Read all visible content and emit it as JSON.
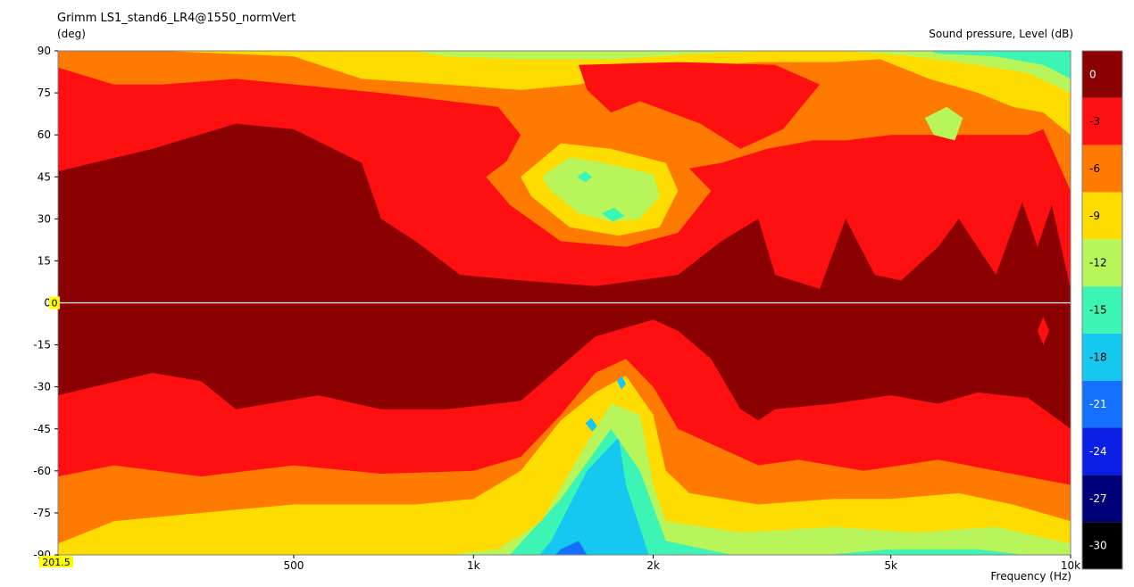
{
  "chart_data": {
    "type": "heatmap",
    "title": "Grimm LS1_stand6_LR4@1550_normVert",
    "ylabel": "(deg)",
    "xlabel": "Frequency  (Hz)",
    "zlabel": "Sound pressure, Level  (dB)",
    "x_scale": "log",
    "xlim": [
      201.5,
      10000
    ],
    "ylim": [
      -90,
      90
    ],
    "x_ticks": [
      {
        "value": 201.5,
        "label": "201.5"
      },
      {
        "value": 500,
        "label": "500"
      },
      {
        "value": 1000,
        "label": "1k"
      },
      {
        "value": 2000,
        "label": "2k"
      },
      {
        "value": 5000,
        "label": "5k"
      },
      {
        "value": 10000,
        "label": "10k"
      }
    ],
    "y_ticks": [
      90,
      75,
      60,
      45,
      30,
      15,
      0,
      -15,
      -30,
      -45,
      -60,
      -75,
      -90
    ],
    "cursor": {
      "y_value": "0",
      "x_value": "201.5"
    },
    "colorbar": [
      {
        "label": "0",
        "color": "#8b0000"
      },
      {
        "label": "-3",
        "color": "#ff1010"
      },
      {
        "label": "-6",
        "color": "#ff7a00"
      },
      {
        "label": "-9",
        "color": "#ffdc00"
      },
      {
        "label": "-12",
        "color": "#b8f55a"
      },
      {
        "label": "-15",
        "color": "#3cf5b4"
      },
      {
        "label": "-18",
        "color": "#14c8f0"
      },
      {
        "label": "-21",
        "color": "#1470ff"
      },
      {
        "label": "-24",
        "color": "#0a1ee6"
      },
      {
        "label": "-27",
        "color": "#00007a"
      },
      {
        "label": "-30",
        "color": "#000000"
      }
    ],
    "contour_fields": [
      {
        "name": "upper",
        "angle_range": [
          0,
          90
        ],
        "levels_db": [
          0,
          -3,
          -6,
          -9,
          -12,
          -15
        ],
        "boundaries_deg": {
          "0": [
            [
              201.5,
              47
            ],
            [
              290,
              55
            ],
            [
              400,
              64
            ],
            [
              500,
              62
            ],
            [
              650,
              50
            ],
            [
              700,
              30
            ],
            [
              800,
              22
            ],
            [
              950,
              10
            ],
            [
              1200,
              8
            ],
            [
              1600,
              6
            ],
            [
              2200,
              10
            ],
            [
              2600,
              22
            ],
            [
              3000,
              30
            ],
            [
              3200,
              10
            ],
            [
              3800,
              5
            ],
            [
              4200,
              30
            ],
            [
              4700,
              10
            ],
            [
              5200,
              8
            ],
            [
              6000,
              20
            ],
            [
              6500,
              30
            ],
            [
              7500,
              10
            ],
            [
              8300,
              36
            ],
            [
              8800,
              20
            ],
            [
              9300,
              35
            ],
            [
              10000,
              5
            ]
          ],
          "-3": [
            [
              201.5,
              84
            ],
            [
              250,
              78
            ],
            [
              300,
              78
            ],
            [
              400,
              80
            ],
            [
              700,
              75
            ],
            [
              1100,
              70
            ],
            [
              1200,
              60
            ],
            [
              1100,
              45
            ],
            [
              1300,
              35
            ],
            [
              1600,
              40
            ],
            [
              1900,
              45
            ],
            [
              2600,
              50
            ],
            [
              3100,
              55
            ],
            [
              3700,
              58
            ],
            [
              4200,
              58
            ],
            [
              5000,
              60
            ],
            [
              7000,
              60
            ],
            [
              8500,
              60
            ],
            [
              9000,
              62
            ],
            [
              10000,
              40
            ]
          ],
          "-6": [
            [
              201.5,
              90
            ],
            [
              300,
              90
            ],
            [
              500,
              88
            ],
            [
              650,
              80
            ],
            [
              900,
              78
            ],
            [
              1200,
              76
            ],
            [
              1500,
              78
            ],
            [
              2000,
              83
            ],
            [
              3000,
              86
            ],
            [
              4000,
              86
            ],
            [
              4800,
              87
            ],
            [
              5800,
              80
            ],
            [
              7000,
              75
            ],
            [
              8000,
              70
            ],
            [
              9000,
              68
            ],
            [
              10000,
              60
            ]
          ],
          "-9": [
            [
              201.5,
              92
            ],
            [
              700,
              92
            ],
            [
              900,
              88
            ],
            [
              1200,
              87
            ],
            [
              1700,
              87
            ],
            [
              2400,
              89
            ],
            [
              3200,
              90
            ],
            [
              4200,
              90
            ],
            [
              5500,
              88
            ],
            [
              7000,
              85
            ],
            [
              8500,
              82
            ],
            [
              10000,
              75
            ]
          ],
          "-12": [
            [
              201.5,
              95
            ],
            [
              5000,
              95
            ],
            [
              6000,
              89
            ],
            [
              7500,
              88
            ],
            [
              9000,
              85
            ],
            [
              10000,
              80
            ]
          ],
          "-15": [
            [
              201.5,
              98
            ],
            [
              7000,
              98
            ],
            [
              8500,
              88
            ],
            [
              9500,
              75
            ],
            [
              10000,
              80
            ]
          ]
        }
      },
      {
        "name": "lower",
        "angle_range": [
          -90,
          0
        ],
        "levels_db": [
          0,
          -3,
          -6,
          -9,
          -12,
          -15,
          -18,
          -21
        ],
        "boundaries_deg": {
          "0": [
            [
              201.5,
              -33
            ],
            [
              290,
              -25
            ],
            [
              350,
              -28
            ],
            [
              400,
              -38
            ],
            [
              550,
              -33
            ],
            [
              700,
              -38
            ],
            [
              900,
              -38
            ],
            [
              1200,
              -35
            ],
            [
              1600,
              -12
            ],
            [
              2000,
              -6
            ],
            [
              2200,
              -10
            ],
            [
              2500,
              -20
            ],
            [
              2800,
              -38
            ],
            [
              3000,
              -42
            ],
            [
              3200,
              -38
            ],
            [
              4000,
              -36
            ],
            [
              5000,
              -33
            ],
            [
              6000,
              -36
            ],
            [
              7000,
              -32
            ],
            [
              8500,
              -34
            ],
            [
              10000,
              -45
            ]
          ],
          "-3": [
            [
              201.5,
              -62
            ],
            [
              250,
              -58
            ],
            [
              350,
              -62
            ],
            [
              500,
              -58
            ],
            [
              700,
              -61
            ],
            [
              1000,
              -60
            ],
            [
              1200,
              -55
            ],
            [
              1400,
              -40
            ],
            [
              1600,
              -25
            ],
            [
              1800,
              -20
            ],
            [
              2000,
              -30
            ],
            [
              2200,
              -45
            ],
            [
              2600,
              -52
            ],
            [
              3000,
              -58
            ],
            [
              3500,
              -56
            ],
            [
              4500,
              -60
            ],
            [
              6000,
              -56
            ],
            [
              7500,
              -60
            ],
            [
              10000,
              -65
            ]
          ],
          "-6": [
            [
              201.5,
              -86
            ],
            [
              250,
              -78
            ],
            [
              350,
              -75
            ],
            [
              500,
              -72
            ],
            [
              800,
              -72
            ],
            [
              1000,
              -70
            ],
            [
              1200,
              -60
            ],
            [
              1400,
              -42
            ],
            [
              1600,
              -32
            ],
            [
              1800,
              -26
            ],
            [
              2000,
              -40
            ],
            [
              2100,
              -60
            ],
            [
              2300,
              -68
            ],
            [
              3000,
              -72
            ],
            [
              4000,
              -70
            ],
            [
              5000,
              -70
            ],
            [
              6500,
              -68
            ],
            [
              8000,
              -72
            ],
            [
              10000,
              -78
            ]
          ],
          "-9": [
            [
              201.5,
              -90
            ],
            [
              900,
              -90
            ],
            [
              1100,
              -88
            ],
            [
              1300,
              -78
            ],
            [
              1500,
              -55
            ],
            [
              1700,
              -36
            ],
            [
              1900,
              -40
            ],
            [
              2000,
              -65
            ],
            [
              2100,
              -78
            ],
            [
              2800,
              -82
            ],
            [
              4000,
              -80
            ],
            [
              5500,
              -82
            ],
            [
              7500,
              -80
            ],
            [
              10000,
              -86
            ]
          ],
          "-12": [
            [
              201.5,
              -95
            ],
            [
              1000,
              -95
            ],
            [
              1150,
              -90
            ],
            [
              1400,
              -70
            ],
            [
              1700,
              -45
            ],
            [
              1900,
              -60
            ],
            [
              2100,
              -85
            ],
            [
              3000,
              -92
            ],
            [
              5000,
              -88
            ],
            [
              7000,
              -88
            ],
            [
              10000,
              -92
            ]
          ],
          "-15": [
            [
              201.5,
              -98
            ],
            [
              1200,
              -98
            ],
            [
              1350,
              -85
            ],
            [
              1550,
              -60
            ],
            [
              1750,
              -48
            ],
            [
              1800,
              -65
            ],
            [
              2000,
              -95
            ],
            [
              10000,
              -98
            ]
          ],
          "-18": [
            [
              201.5,
              -99
            ],
            [
              1250,
              -99
            ],
            [
              1400,
              -88
            ],
            [
              1500,
              -85
            ],
            [
              1600,
              -95
            ],
            [
              10000,
              -99
            ]
          ],
          "-21": [
            [
              201.5,
              -100
            ],
            [
              1350,
              -100
            ],
            [
              1420,
              -95
            ],
            [
              1500,
              -100
            ],
            [
              10000,
              -100
            ]
          ]
        }
      }
    ],
    "islands": [
      {
        "level": "-6",
        "points": [
          [
            1050,
            45
          ],
          [
            1300,
            60
          ],
          [
            1700,
            58
          ],
          [
            2200,
            52
          ],
          [
            2500,
            40
          ],
          [
            2200,
            25
          ],
          [
            1800,
            20
          ],
          [
            1400,
            22
          ],
          [
            1150,
            35
          ]
        ]
      },
      {
        "level": "-9",
        "points": [
          [
            1200,
            45
          ],
          [
            1400,
            57
          ],
          [
            1700,
            55
          ],
          [
            2100,
            50
          ],
          [
            2200,
            40
          ],
          [
            2050,
            27
          ],
          [
            1750,
            24
          ],
          [
            1450,
            27
          ],
          [
            1250,
            38
          ]
        ]
      },
      {
        "level": "-12",
        "points": [
          [
            1300,
            45
          ],
          [
            1450,
            52
          ],
          [
            1650,
            50
          ],
          [
            2000,
            46
          ],
          [
            2050,
            38
          ],
          [
            1900,
            30
          ],
          [
            1700,
            29
          ],
          [
            1500,
            32
          ],
          [
            1350,
            40
          ]
        ]
      },
      {
        "level": "-15",
        "points": [
          [
            1490,
            45
          ],
          [
            1540,
            47
          ],
          [
            1580,
            45
          ],
          [
            1540,
            43
          ]
        ]
      },
      {
        "level": "-15",
        "points": [
          [
            1640,
            32
          ],
          [
            1720,
            34
          ],
          [
            1790,
            31
          ],
          [
            1710,
            29
          ]
        ]
      },
      {
        "level": "-3",
        "points": [
          [
            1500,
            85
          ],
          [
            2200,
            86
          ],
          [
            3200,
            85
          ],
          [
            3800,
            78
          ],
          [
            3300,
            62
          ],
          [
            2800,
            55
          ],
          [
            2400,
            64
          ],
          [
            1900,
            72
          ],
          [
            1700,
            68
          ],
          [
            1550,
            76
          ]
        ]
      },
      {
        "level": "-12",
        "points": [
          [
            5700,
            66
          ],
          [
            6200,
            70
          ],
          [
            6600,
            66
          ],
          [
            6400,
            58
          ],
          [
            5900,
            60
          ]
        ]
      },
      {
        "level": "-18",
        "points": [
          [
            1540,
            -43
          ],
          [
            1580,
            -46
          ],
          [
            1610,
            -44
          ],
          [
            1575,
            -41
          ]
        ]
      },
      {
        "level": "-18",
        "points": [
          [
            1740,
            -28
          ],
          [
            1770,
            -31
          ],
          [
            1800,
            -29
          ],
          [
            1770,
            -26
          ]
        ]
      },
      {
        "level": "-3",
        "points": [
          [
            8800,
            -10
          ],
          [
            9000,
            -15
          ],
          [
            9200,
            -10
          ],
          [
            9000,
            -5
          ]
        ]
      }
    ]
  }
}
